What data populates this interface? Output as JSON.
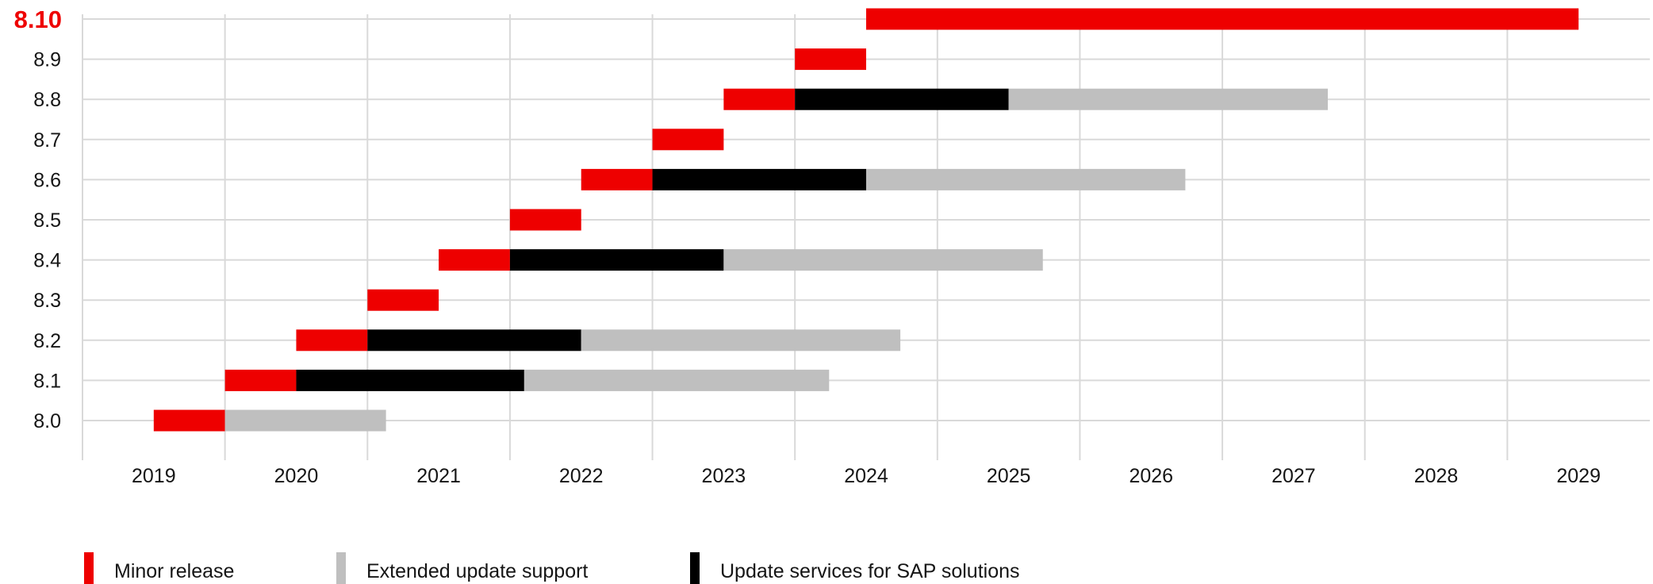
{
  "chart_data": {
    "type": "gantt",
    "x_ticks": [
      "2019",
      "2020",
      "2021",
      "2022",
      "2023",
      "2024",
      "2025",
      "2026",
      "2027",
      "2028",
      "2029"
    ],
    "xlim": [
      2018.5,
      2029.5
    ],
    "highlighted_release": "8.10",
    "colors": {
      "minor": "#ee0000",
      "eus": "#bfbfbf",
      "sap": "#000000",
      "highlight_text": "#ee0000",
      "grid": "#d9d9d9"
    },
    "releases": [
      {
        "label": "8.0",
        "segments": [
          {
            "type": "minor",
            "start": 2019.0,
            "end": 2019.5
          },
          {
            "type": "eus",
            "start": 2019.5,
            "end": 2020.63
          }
        ]
      },
      {
        "label": "8.1",
        "segments": [
          {
            "type": "minor",
            "start": 2019.5,
            "end": 2020.0
          },
          {
            "type": "sap",
            "start": 2020.0,
            "end": 2021.6
          },
          {
            "type": "eus",
            "start": 2021.6,
            "end": 2023.74
          }
        ]
      },
      {
        "label": "8.2",
        "segments": [
          {
            "type": "minor",
            "start": 2020.0,
            "end": 2020.5
          },
          {
            "type": "sap",
            "start": 2020.5,
            "end": 2022.0
          },
          {
            "type": "eus",
            "start": 2022.0,
            "end": 2024.24
          }
        ]
      },
      {
        "label": "8.3",
        "segments": [
          {
            "type": "minor",
            "start": 2020.5,
            "end": 2021.0
          }
        ]
      },
      {
        "label": "8.4",
        "segments": [
          {
            "type": "minor",
            "start": 2021.0,
            "end": 2021.5
          },
          {
            "type": "sap",
            "start": 2021.5,
            "end": 2023.0
          },
          {
            "type": "eus",
            "start": 2023.0,
            "end": 2025.24
          }
        ]
      },
      {
        "label": "8.5",
        "segments": [
          {
            "type": "minor",
            "start": 2021.5,
            "end": 2022.0
          }
        ]
      },
      {
        "label": "8.6",
        "segments": [
          {
            "type": "minor",
            "start": 2022.0,
            "end": 2022.5
          },
          {
            "type": "sap",
            "start": 2022.5,
            "end": 2024.0
          },
          {
            "type": "eus",
            "start": 2024.0,
            "end": 2026.24
          }
        ]
      },
      {
        "label": "8.7",
        "segments": [
          {
            "type": "minor",
            "start": 2022.5,
            "end": 2023.0
          }
        ]
      },
      {
        "label": "8.8",
        "segments": [
          {
            "type": "minor",
            "start": 2023.0,
            "end": 2023.5
          },
          {
            "type": "sap",
            "start": 2023.5,
            "end": 2025.0
          },
          {
            "type": "eus",
            "start": 2025.0,
            "end": 2027.24
          }
        ]
      },
      {
        "label": "8.9",
        "segments": [
          {
            "type": "minor",
            "start": 2023.5,
            "end": 2024.0
          }
        ]
      },
      {
        "label": "8.10",
        "segments": [
          {
            "type": "minor",
            "start": 2024.0,
            "end": 2029.0
          }
        ]
      }
    ]
  },
  "legend": [
    {
      "key": "minor",
      "label": "Minor release"
    },
    {
      "key": "eus",
      "label": "Extended update support"
    },
    {
      "key": "sap",
      "label": "Update services for SAP solutions"
    }
  ]
}
